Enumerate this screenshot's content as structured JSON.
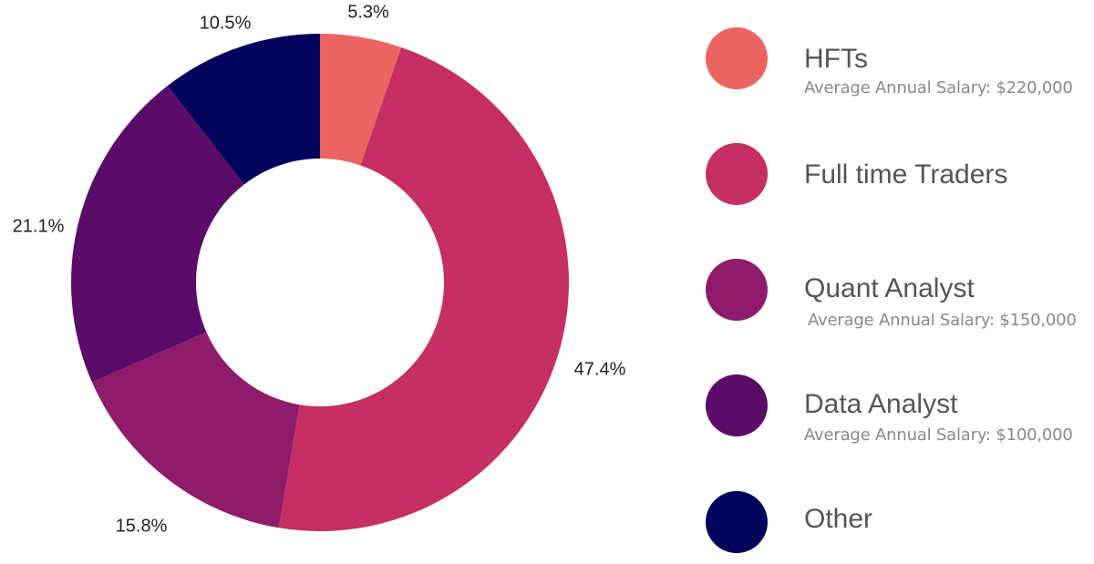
{
  "chart_data": {
    "type": "pie",
    "variant": "donut",
    "categories": [
      "HFTs",
      "Full time Traders",
      "Quant Analyst",
      "Data Analyst",
      "Other"
    ],
    "values": [
      5.3,
      47.4,
      15.8,
      21.1,
      10.5
    ],
    "labels": [
      "5.3%",
      "47.4%",
      "15.8%",
      "21.1%",
      "10.5%"
    ],
    "colors": [
      "#ec6461",
      "#c52f63",
      "#8e1c6a",
      "#5a0c68",
      "#02045c"
    ],
    "start_angle_deg": 0,
    "direction": "clockwise",
    "legend_position": "right"
  },
  "legend": {
    "items": [
      {
        "name": "HFTs",
        "subtitle": "Average Annual Salary: $220,000",
        "color": "#ec6461",
        "icon": "circle-swatch-icon"
      },
      {
        "name": "Full time Traders",
        "subtitle": "",
        "color": "#c52f63",
        "icon": "circle-swatch-icon"
      },
      {
        "name": "Quant Analyst",
        "subtitle": "Average Annual Salary: $150,000",
        "color": "#8e1c6a",
        "icon": "circle-swatch-icon"
      },
      {
        "name": "Data Analyst",
        "subtitle": "Average Annual Salary:  $100,000",
        "color": "#5a0c68",
        "icon": "circle-swatch-icon"
      },
      {
        "name": "Other",
        "subtitle": "",
        "color": "#02045c",
        "icon": "circle-swatch-icon"
      }
    ]
  }
}
